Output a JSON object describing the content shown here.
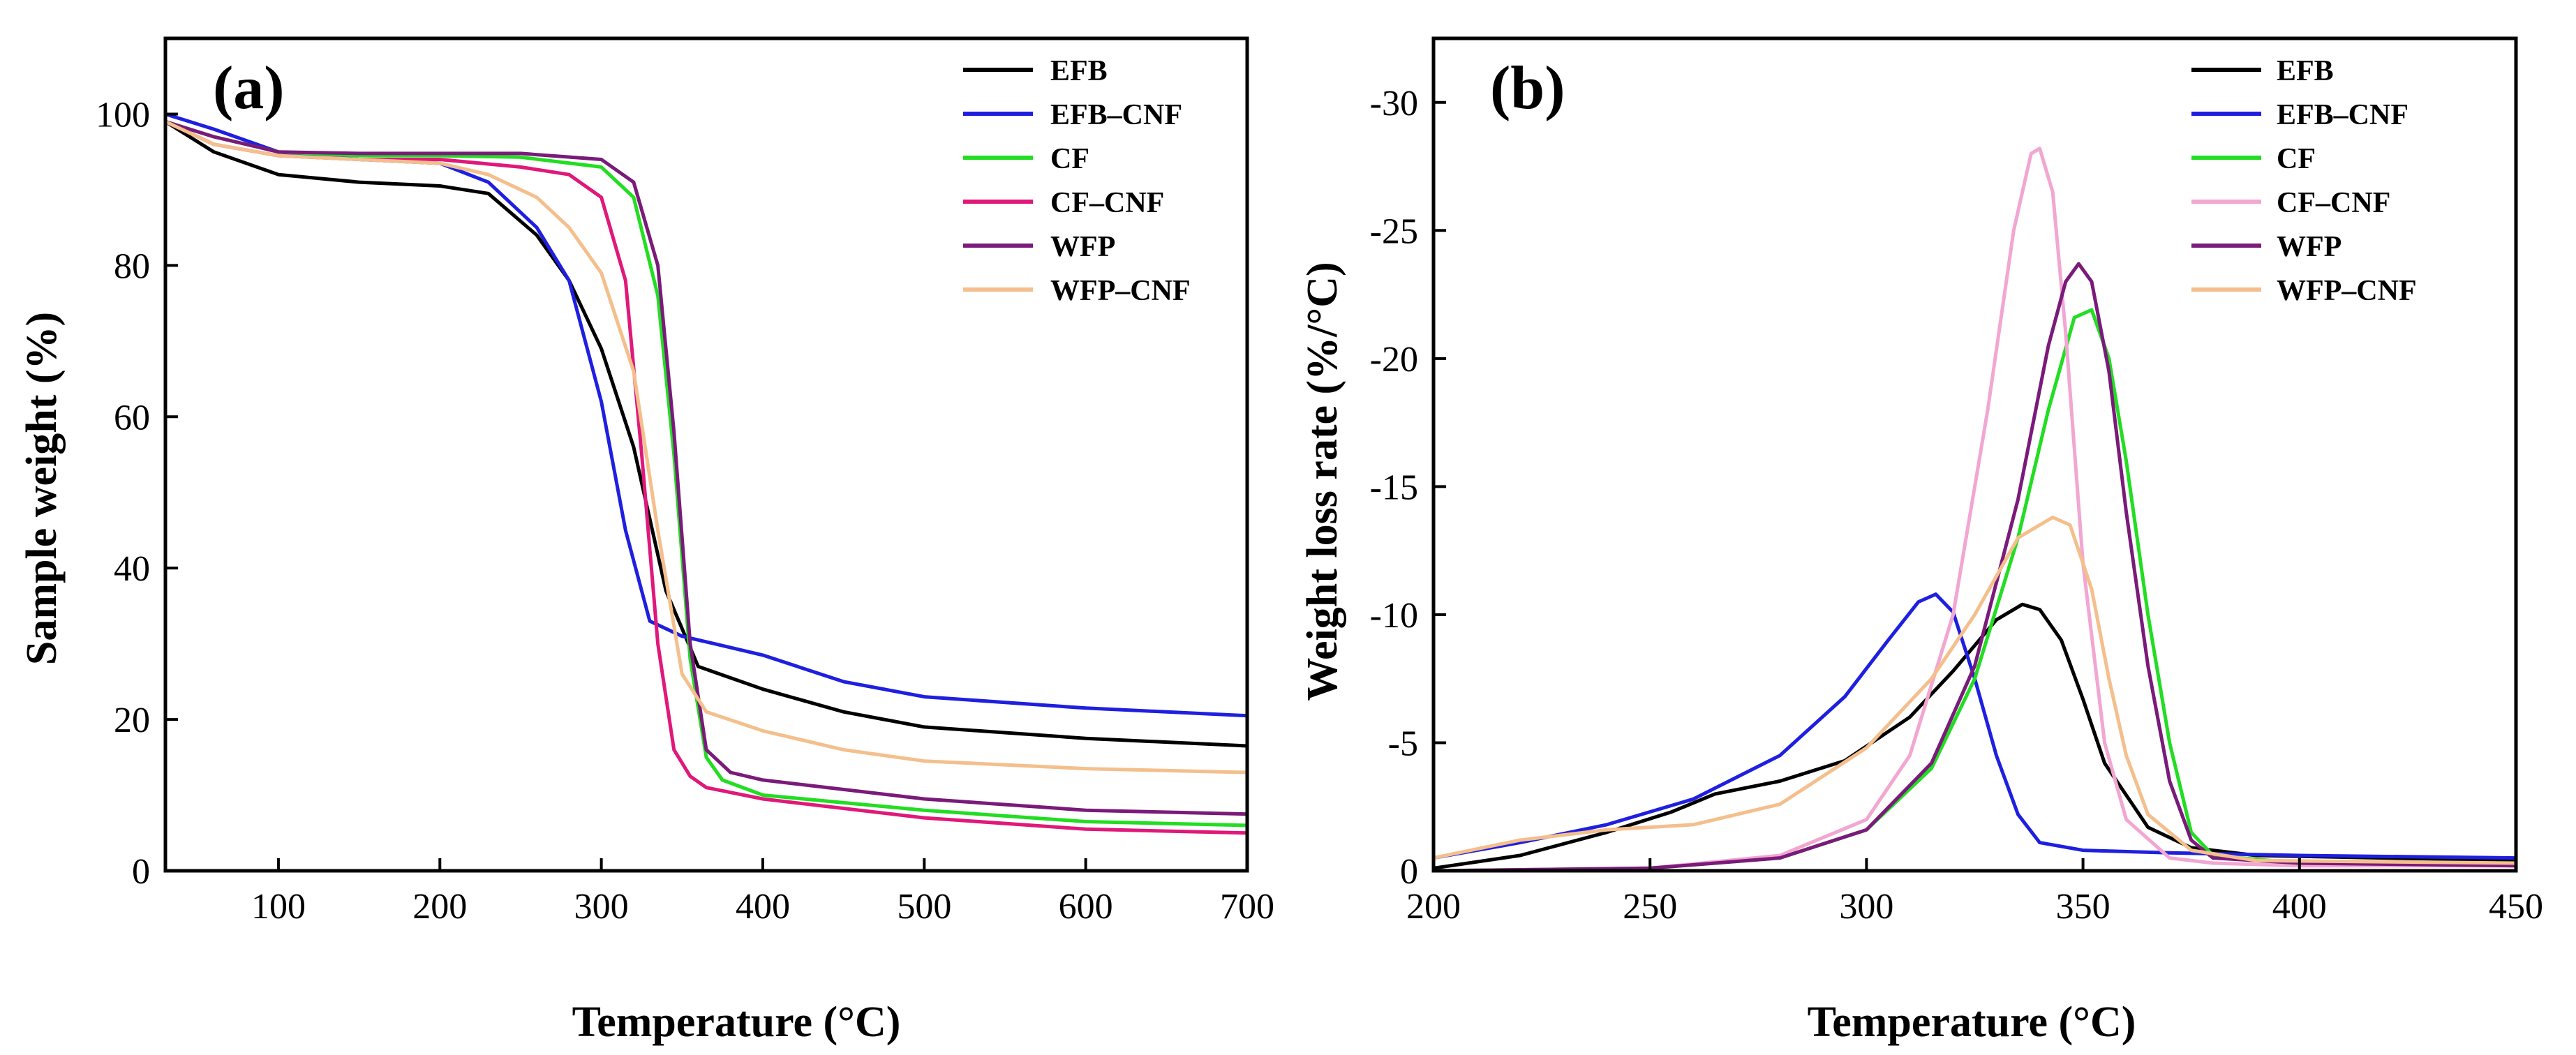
{
  "chart_data": [
    {
      "type": "line",
      "panel_label": "(a)",
      "xlabel": "Temperature (°C)",
      "ylabel": "Sample weight (%)",
      "xlim": [
        30,
        700
      ],
      "ylim": [
        0,
        110
      ],
      "xticks": [
        100,
        200,
        300,
        400,
        500,
        600,
        700
      ],
      "yticks": [
        0,
        20,
        40,
        60,
        80,
        100
      ],
      "legend_position": "top-right",
      "series": [
        {
          "name": "EFB",
          "color": "#000000",
          "x": [
            30,
            60,
            100,
            150,
            200,
            230,
            260,
            280,
            300,
            320,
            340,
            360,
            400,
            450,
            500,
            600,
            700
          ],
          "y": [
            99,
            95,
            92,
            91,
            90.5,
            89.5,
            84,
            78,
            69,
            56,
            37,
            27,
            24,
            21,
            19,
            17.5,
            16.5
          ]
        },
        {
          "name": "EFB–CNF",
          "color": "#1f1fe0",
          "x": [
            30,
            60,
            100,
            150,
            200,
            230,
            260,
            280,
            300,
            315,
            330,
            350,
            400,
            450,
            500,
            600,
            700
          ],
          "y": [
            100,
            98,
            95,
            94,
            93.5,
            91,
            85,
            78,
            62,
            45,
            33,
            31,
            28.5,
            25,
            23,
            21.5,
            20.5
          ]
        },
        {
          "name": "CF",
          "color": "#22dd22",
          "x": [
            30,
            60,
            100,
            150,
            200,
            250,
            300,
            320,
            335,
            345,
            355,
            365,
            375,
            400,
            500,
            600,
            700
          ],
          "y": [
            99,
            97,
            95,
            94.5,
            94.5,
            94.3,
            93,
            89,
            76,
            55,
            28,
            15,
            12,
            10,
            8,
            6.5,
            6
          ]
        },
        {
          "name": "CF–CNF",
          "color": "#e0187a",
          "x": [
            30,
            60,
            100,
            150,
            200,
            250,
            280,
            300,
            315,
            325,
            335,
            345,
            355,
            365,
            400,
            500,
            600,
            700
          ],
          "y": [
            99,
            96,
            94.5,
            94,
            94,
            93,
            92,
            89,
            78,
            55,
            30,
            16,
            12.5,
            11,
            9.5,
            7,
            5.5,
            5
          ]
        },
        {
          "name": "WFP",
          "color": "#7a1a7a",
          "x": [
            30,
            60,
            100,
            150,
            200,
            250,
            300,
            320,
            335,
            345,
            355,
            365,
            380,
            400,
            500,
            600,
            700
          ],
          "y": [
            99,
            97,
            95,
            94.8,
            94.8,
            94.8,
            94,
            91,
            80,
            58,
            30,
            16,
            13,
            12,
            9.5,
            8,
            7.5
          ]
        },
        {
          "name": "WFP–CNF",
          "color": "#f4bf8c",
          "x": [
            30,
            60,
            100,
            150,
            200,
            230,
            260,
            280,
            300,
            320,
            335,
            350,
            365,
            400,
            450,
            500,
            600,
            700
          ],
          "y": [
            99,
            96,
            94.5,
            94,
            93.5,
            92,
            89,
            85,
            79,
            66,
            45,
            26,
            21,
            18.5,
            16,
            14.5,
            13.5,
            13
          ]
        }
      ]
    },
    {
      "type": "line",
      "panel_label": "(b)",
      "xlabel": "Temperature (°C)",
      "ylabel": "Weight loss rate (%/°C)",
      "xlim": [
        200,
        450
      ],
      "ylim": [
        0,
        -32.5
      ],
      "xticks": [
        200,
        250,
        300,
        350,
        400,
        450
      ],
      "yticks": [
        0,
        -5,
        -10,
        -15,
        -20,
        -25,
        -30
      ],
      "legend_position": "top-right",
      "series": [
        {
          "name": "EFB",
          "color": "#000000",
          "x": [
            200,
            220,
            240,
            255,
            265,
            280,
            295,
            310,
            320,
            330,
            336,
            340,
            345,
            350,
            355,
            365,
            375,
            390,
            450
          ],
          "y": [
            -0.1,
            -0.6,
            -1.5,
            -2.3,
            -3.0,
            -3.5,
            -4.3,
            -6.0,
            -7.8,
            -9.8,
            -10.4,
            -10.2,
            -9.0,
            -6.7,
            -4.2,
            -1.7,
            -0.9,
            -0.6,
            -0.4
          ]
        },
        {
          "name": "EFB–CNF",
          "color": "#1f1fe0",
          "x": [
            200,
            220,
            240,
            260,
            280,
            295,
            305,
            312,
            316,
            320,
            325,
            330,
            335,
            340,
            350,
            370,
            400,
            450
          ],
          "y": [
            -0.5,
            -1.1,
            -1.8,
            -2.8,
            -4.5,
            -6.8,
            -9.0,
            -10.5,
            -10.8,
            -10.1,
            -7.5,
            -4.5,
            -2.2,
            -1.1,
            -0.8,
            -0.7,
            -0.6,
            -0.5
          ]
        },
        {
          "name": "CF",
          "color": "#22dd22",
          "x": [
            200,
            250,
            280,
            300,
            315,
            325,
            335,
            342,
            348,
            352,
            356,
            360,
            365,
            370,
            375,
            380,
            400,
            450
          ],
          "y": [
            0,
            -0.1,
            -0.5,
            -1.6,
            -4.0,
            -7.5,
            -13.0,
            -18.0,
            -21.6,
            -21.9,
            -20.0,
            -16.0,
            -10.0,
            -5.0,
            -1.5,
            -0.6,
            -0.3,
            -0.2
          ]
        },
        {
          "name": "CF–CNF",
          "color": "#f2a6d2",
          "x": [
            200,
            250,
            280,
            300,
            310,
            320,
            328,
            334,
            338,
            340,
            343,
            346,
            350,
            355,
            360,
            370,
            380,
            400,
            450
          ],
          "y": [
            0,
            -0.1,
            -0.6,
            -2.0,
            -4.5,
            -10.0,
            -18.0,
            -25.0,
            -28.0,
            -28.2,
            -26.5,
            -21.0,
            -12.0,
            -5.0,
            -2.0,
            -0.5,
            -0.3,
            -0.2,
            -0.2
          ]
        },
        {
          "name": "WFP",
          "color": "#7a1a7a",
          "x": [
            200,
            250,
            280,
            300,
            315,
            325,
            335,
            342,
            346,
            349,
            352,
            356,
            360,
            365,
            370,
            375,
            380,
            400,
            450
          ],
          "y": [
            0,
            -0.1,
            -0.5,
            -1.6,
            -4.2,
            -8.0,
            -14.5,
            -20.5,
            -23.0,
            -23.7,
            -23.0,
            -19.5,
            -14.0,
            -8.0,
            -3.5,
            -1.2,
            -0.5,
            -0.3,
            -0.2
          ]
        },
        {
          "name": "WFP–CNF",
          "color": "#f4bf8c",
          "x": [
            200,
            220,
            240,
            260,
            280,
            300,
            315,
            325,
            335,
            343,
            347,
            352,
            356,
            360,
            365,
            375,
            390,
            450
          ],
          "y": [
            -0.5,
            -1.2,
            -1.6,
            -1.8,
            -2.6,
            -4.8,
            -7.5,
            -10.0,
            -13.0,
            -13.8,
            -13.5,
            -11.0,
            -7.5,
            -4.5,
            -2.2,
            -0.8,
            -0.4,
            -0.3
          ]
        }
      ]
    }
  ]
}
